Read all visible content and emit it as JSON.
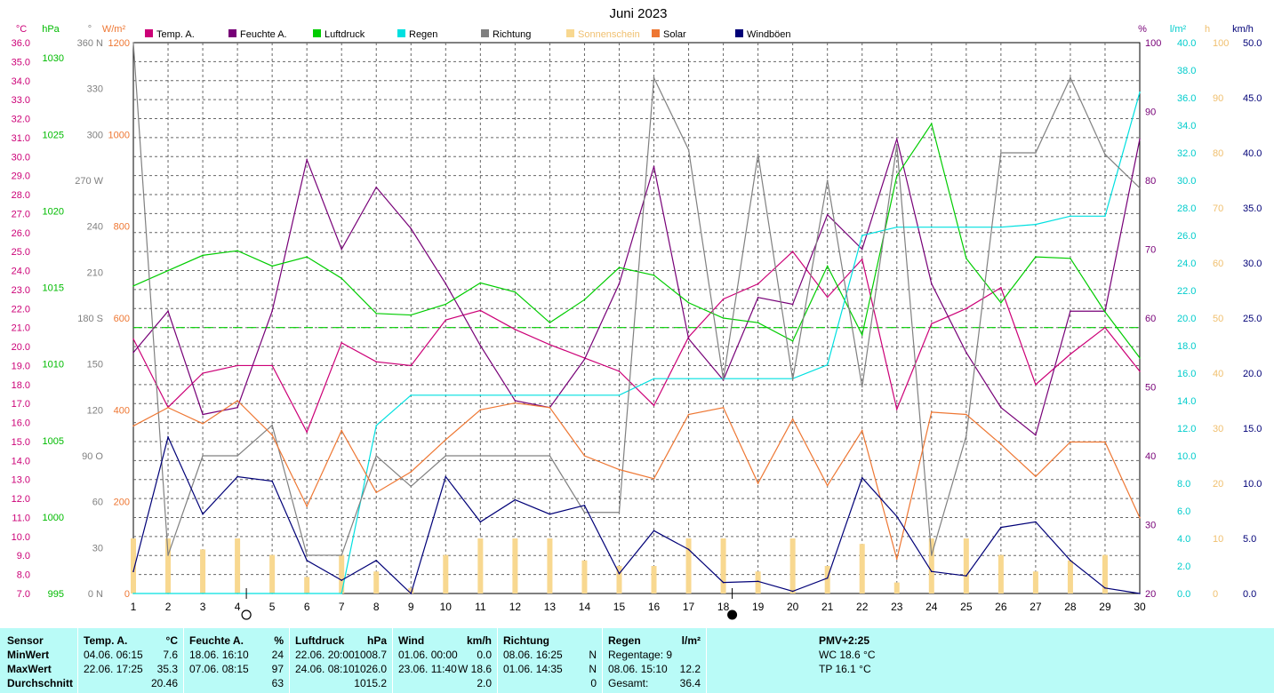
{
  "title": "Juni 2023",
  "legend": [
    {
      "name": "Temp. A.",
      "color": "#cc0077"
    },
    {
      "name": "Feuchte A.",
      "color": "#770077"
    },
    {
      "name": "Luftdruck",
      "color": "#00cc00"
    },
    {
      "name": "Regen",
      "color": "#00e0e0"
    },
    {
      "name": "Richtung",
      "color": "#808080"
    },
    {
      "name": "Sonnenschein",
      "color": "#f8d890"
    },
    {
      "name": "Solar",
      "color": "#ee7733"
    },
    {
      "name": "Windböen",
      "color": "#000077"
    }
  ],
  "axes": {
    "temp": {
      "unit": "°C",
      "color": "#cc0077",
      "ticks": [
        "36.0",
        "35.0",
        "34.0",
        "33.0",
        "32.0",
        "31.0",
        "30.0",
        "29.0",
        "28.0",
        "27.0",
        "26.0",
        "25.0",
        "24.0",
        "23.0",
        "22.0",
        "21.0",
        "20.0",
        "19.0",
        "18.0",
        "17.0",
        "16.0",
        "15.0",
        "14.0",
        "13.0",
        "12.0",
        "11.0",
        "10.0",
        "9.0",
        "8.0",
        "7.0"
      ]
    },
    "pressure": {
      "unit": "hPa",
      "color": "#00bb00",
      "ticks": [
        "1030",
        "1025",
        "1020",
        "1015",
        "1010",
        "1005",
        "1000",
        "995"
      ]
    },
    "direction": {
      "unit": "°",
      "color": "#808080",
      "ticks": [
        "360 N",
        "330",
        "300",
        "270 W",
        "240",
        "210",
        "180 S",
        "150",
        "120",
        "90  O",
        "60",
        "30",
        "0    N"
      ]
    },
    "solar": {
      "unit": "W/m²",
      "color": "#ee7733",
      "ticks": [
        "1200",
        "1000",
        "800",
        "600",
        "400",
        "200",
        "0"
      ]
    },
    "humidity": {
      "unit": "%",
      "color": "#770077",
      "ticks": [
        "100",
        "90",
        "80",
        "70",
        "60",
        "50",
        "40",
        "30",
        "20"
      ]
    },
    "rain": {
      "unit": "l/m²",
      "color": "#00cccc",
      "ticks": [
        "40.0",
        "38.0",
        "36.0",
        "34.0",
        "32.0",
        "30.0",
        "28.0",
        "26.0",
        "24.0",
        "22.0",
        "20.0",
        "18.0",
        "16.0",
        "14.0",
        "12.0",
        "10.0",
        "8.0",
        "6.0",
        "4.0",
        "2.0",
        "0.0"
      ]
    },
    "sun": {
      "unit": "h",
      "color": "#f0c070",
      "ticks": [
        "100",
        "90",
        "80",
        "70",
        "60",
        "50",
        "40",
        "30",
        "20",
        "10",
        "0"
      ]
    },
    "wind": {
      "unit": "km/h",
      "color": "#000077",
      "ticks": [
        "50.0",
        "45.0",
        "40.0",
        "35.0",
        "30.0",
        "25.0",
        "20.0",
        "15.0",
        "10.0",
        "5.0",
        "0.0"
      ]
    }
  },
  "chart_data": {
    "type": "line",
    "title": "Juni 2023",
    "x": [
      1,
      2,
      3,
      4,
      5,
      6,
      7,
      8,
      9,
      10,
      11,
      12,
      13,
      14,
      15,
      16,
      17,
      18,
      19,
      20,
      21,
      22,
      23,
      24,
      25,
      26,
      27,
      28,
      29,
      30
    ],
    "grid": true,
    "legend_position": "top",
    "reference_line": {
      "axis": "temp",
      "value": 21.0
    },
    "moon_phases": [
      {
        "day": 4,
        "phase": "full"
      },
      {
        "day": 18,
        "phase": "new"
      }
    ],
    "series": [
      {
        "name": "Temp. A.",
        "axis": "temp",
        "unit": "°C",
        "ylim": [
          7,
          36
        ],
        "values": [
          20.4,
          16.8,
          18.6,
          19.0,
          19.0,
          15.5,
          20.2,
          19.2,
          19.0,
          21.4,
          21.9,
          20.9,
          20.1,
          19.4,
          18.7,
          16.9,
          20.5,
          22.5,
          23.3,
          25.0,
          22.6,
          24.6,
          16.7,
          21.2,
          22.0,
          23.1,
          18.0,
          19.6,
          21.0,
          18.7
        ]
      },
      {
        "name": "Feuchte A.",
        "axis": "humidity",
        "unit": "%",
        "ylim": [
          20,
          100
        ],
        "values": [
          55,
          61,
          46,
          47,
          61,
          83,
          70,
          79,
          73,
          65,
          56,
          48,
          47,
          54,
          65,
          82,
          57,
          51,
          63,
          62,
          75,
          70,
          86,
          65,
          55,
          47,
          43,
          61,
          61,
          86
        ]
      },
      {
        "name": "Luftdruck",
        "axis": "pressure",
        "unit": "hPa",
        "ylim": [
          995,
          1031
        ],
        "values": [
          1015.1,
          1016.1,
          1017.1,
          1017.4,
          1016.4,
          1017.0,
          1015.6,
          1013.3,
          1013.2,
          1013.9,
          1015.3,
          1014.7,
          1012.7,
          1014.2,
          1016.3,
          1015.8,
          1014.0,
          1013.0,
          1012.7,
          1011.5,
          1016.4,
          1011.9,
          1022.3,
          1025.7,
          1016.9,
          1014.0,
          1017.0,
          1016.9,
          1013.4,
          1010.4
        ]
      },
      {
        "name": "Regen",
        "axis": "rain",
        "unit": "l/m²",
        "ylim": [
          0,
          40
        ],
        "values": [
          0,
          0,
          0,
          0,
          0,
          0,
          0,
          12.2,
          14.4,
          14.4,
          14.4,
          14.4,
          14.4,
          14.4,
          14.4,
          15.6,
          15.6,
          15.6,
          15.6,
          15.6,
          16.6,
          26.0,
          26.6,
          26.6,
          26.6,
          26.6,
          26.8,
          27.4,
          27.4,
          36.4
        ]
      },
      {
        "name": "Richtung",
        "axis": "direction",
        "unit": "°",
        "ylim": [
          0,
          360
        ],
        "values": [
          360,
          25,
          90,
          90,
          110,
          25,
          25,
          90,
          70,
          90,
          90,
          90,
          90,
          53,
          53,
          337,
          290,
          140,
          287,
          140,
          270,
          135,
          293,
          25,
          103,
          288,
          288,
          337,
          287,
          265
        ]
      },
      {
        "name": "Sonnenschein",
        "axis": "sun",
        "unit": "h",
        "type": "bar",
        "ylim": [
          0,
          100
        ],
        "values": [
          10,
          10,
          8,
          10,
          7,
          3,
          7,
          4,
          1,
          7,
          10,
          10,
          10,
          6,
          5,
          5,
          10,
          10,
          4,
          10,
          5,
          9,
          2,
          10,
          10,
          7,
          4,
          6,
          7,
          0
        ]
      },
      {
        "name": "Solar",
        "axis": "solar",
        "unit": "W/m²",
        "ylim": [
          0,
          1200
        ],
        "values": [
          365,
          405,
          370,
          420,
          345,
          190,
          355,
          220,
          265,
          335,
          400,
          415,
          405,
          300,
          270,
          250,
          390,
          405,
          240,
          380,
          235,
          355,
          75,
          395,
          390,
          325,
          255,
          330,
          330,
          165
        ]
      },
      {
        "name": "Windböen",
        "axis": "wind",
        "unit": "km/h",
        "ylim": [
          0,
          50
        ],
        "values": [
          2.0,
          14.2,
          7.2,
          10.6,
          10.2,
          3.0,
          1.2,
          3.0,
          0.0,
          10.6,
          6.5,
          8.5,
          7.2,
          8.0,
          1.8,
          5.7,
          4.0,
          1.0,
          1.1,
          0.2,
          1.4,
          10.5,
          7.0,
          2.0,
          1.6,
          6.0,
          6.5,
          3.0,
          0.5,
          0.0
        ]
      }
    ]
  },
  "stats": {
    "sensor": {
      "header": "Sensor",
      "min": "MinWert",
      "max": "MaxWert",
      "avg": "Durchschnitt"
    },
    "temp": {
      "header": "Temp. A.",
      "unit": "°C",
      "min_time": "04.06.  06:15",
      "min_val": "7.6",
      "max_time": "22.06.  17:25",
      "max_val": "35.3",
      "avg_val": "20.46"
    },
    "humidity": {
      "header": "Feuchte A.",
      "unit": "%",
      "min_time": "18.06.  16:10",
      "min_val": "24",
      "max_time": "07.06.  08:15",
      "max_val": "97",
      "avg_val": "63"
    },
    "pressure": {
      "header": "Luftdruck",
      "unit": "hPa",
      "min_time": "22.06.  20:00",
      "min_val": "1008.7",
      "max_time": "24.06.  08:10",
      "max_val": "1026.0",
      "avg_val": "1015.2"
    },
    "wind": {
      "header": "Wind",
      "unit": "km/h",
      "min_time": "01.06.  00:00",
      "min_val": "0.0",
      "max_time": "23.06.  11:40",
      "max_val": "W 18.6",
      "avg_val": "2.0"
    },
    "direction": {
      "header": "Richtung",
      "min_time": "08.06.  16:25",
      "min_val": "N",
      "max_time": "01.06.  14:35",
      "max_val": "N",
      "avg_val": "0"
    },
    "rain": {
      "header": "Regen",
      "unit": "l/m²",
      "days_label": "Regentage: 9",
      "max_time": "08.06.  15:10",
      "max_val": "12.2",
      "total_label": "Gesamt:",
      "total_val": "36.4"
    },
    "pmv": {
      "header": "PMV+2:25",
      "wc": "WC 18.6 °C",
      "tp": "TP 16.1 °C"
    }
  }
}
